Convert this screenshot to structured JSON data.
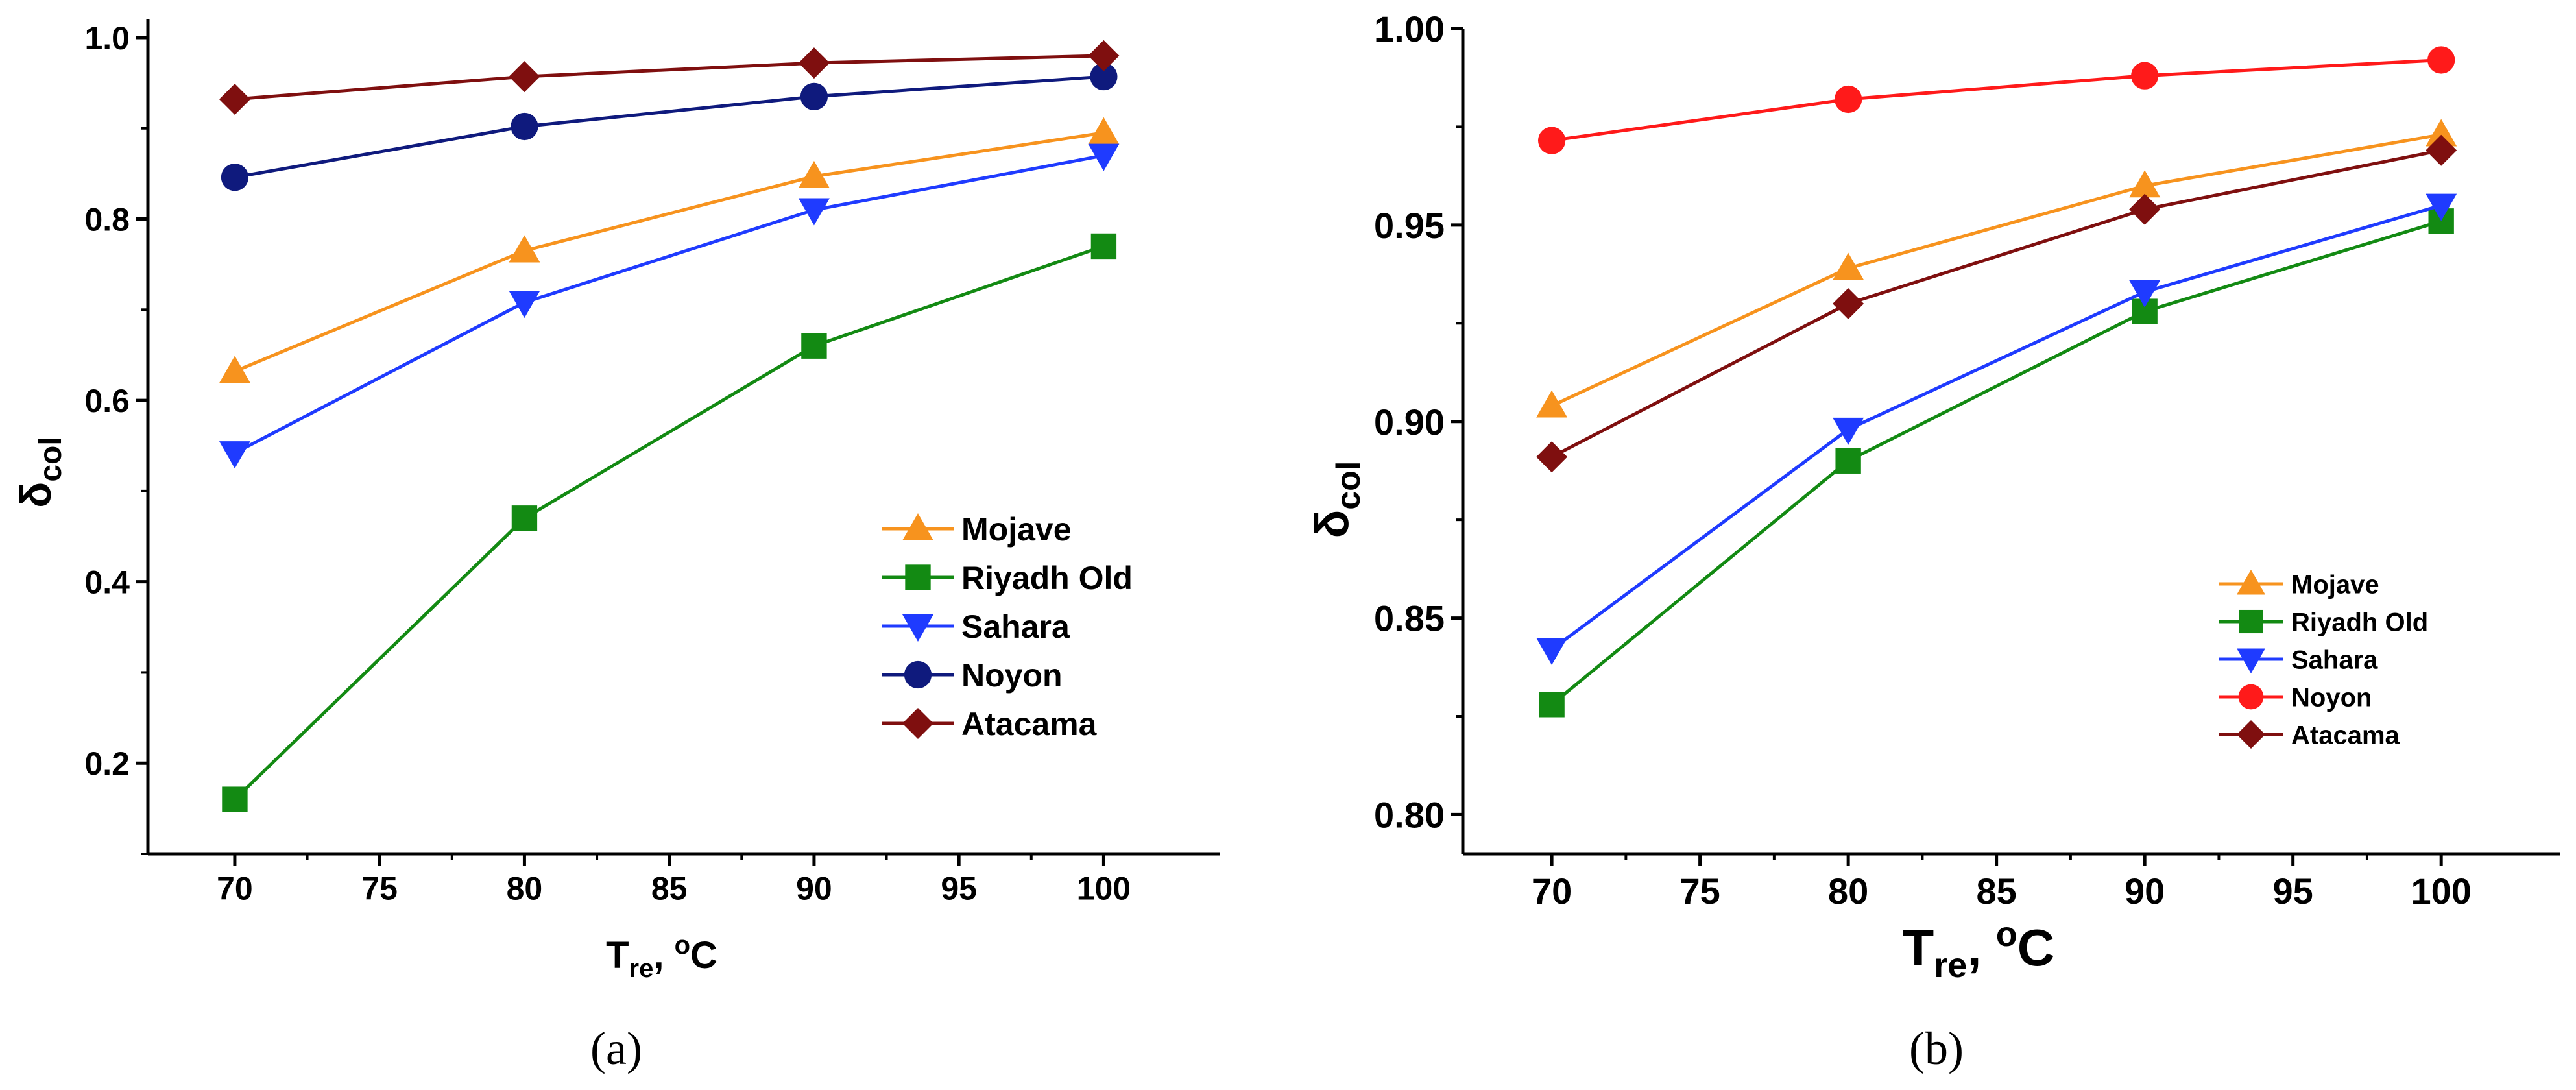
{
  "chart_data": [
    {
      "type": "line",
      "panel_label": "a",
      "x": [
        70,
        80,
        90,
        100
      ],
      "xlim": [
        67,
        104
      ],
      "ylim": [
        0.1,
        1.02
      ],
      "xticks": [
        "70",
        "75",
        "80",
        "85",
        "90",
        "95",
        "100"
      ],
      "yticks": [
        "0.2",
        "0.4",
        "0.6",
        "0.8",
        "1.0"
      ],
      "xlabel": {
        "main": "T",
        "sub": "re",
        "rest": ", ",
        "sup": "o",
        "unit": "C"
      },
      "ylabel": {
        "main": "δ",
        "sub": "col"
      },
      "legend_position": "lower-right",
      "series": [
        {
          "name": "Mojave",
          "color": "#f7931e",
          "marker": "triangle-up",
          "values": [
            0.632,
            0.765,
            0.847,
            0.895
          ]
        },
        {
          "name": "Riyadh Old",
          "color": "#138a13",
          "marker": "square",
          "values": [
            0.16,
            0.47,
            0.66,
            0.77
          ]
        },
        {
          "name": "Sahara",
          "color": "#1f3bff",
          "marker": "triangle-down",
          "values": [
            0.542,
            0.708,
            0.81,
            0.87
          ]
        },
        {
          "name": "Noyon",
          "color": "#0f1a7d",
          "marker": "circle",
          "values": [
            0.846,
            0.902,
            0.935,
            0.957
          ]
        },
        {
          "name": "Atacama",
          "color": "#7f0f0f",
          "marker": "diamond",
          "values": [
            0.932,
            0.957,
            0.972,
            0.98
          ]
        }
      ]
    },
    {
      "type": "line",
      "panel_label": "b",
      "x": [
        70,
        80,
        90,
        100
      ],
      "xlim": [
        67,
        104
      ],
      "ylim": [
        0.79,
        1.0
      ],
      "xticks": [
        "70",
        "75",
        "80",
        "85",
        "90",
        "95",
        "100"
      ],
      "yticks": [
        "0.80",
        "0.85",
        "0.90",
        "0.95",
        "1.00"
      ],
      "xlabel": {
        "main": "T",
        "sub": "re",
        "rest": ", ",
        "sup": "o",
        "unit": "C"
      },
      "ylabel": {
        "main": "δ",
        "sub": "col"
      },
      "legend_position": "lower-right",
      "series": [
        {
          "name": "Mojave",
          "color": "#f7931e",
          "marker": "triangle-up",
          "values": [
            0.904,
            0.939,
            0.96,
            0.973
          ]
        },
        {
          "name": "Riyadh Old",
          "color": "#138a13",
          "marker": "square",
          "values": [
            0.828,
            0.89,
            0.928,
            0.951
          ]
        },
        {
          "name": "Sahara",
          "color": "#1f3bff",
          "marker": "triangle-down",
          "values": [
            0.842,
            0.898,
            0.933,
            0.955
          ]
        },
        {
          "name": "Noyon",
          "color": "#ff1a1a",
          "marker": "circle",
          "values": [
            0.9715,
            0.982,
            0.988,
            0.992
          ]
        },
        {
          "name": "Atacama",
          "color": "#7f0f0f",
          "marker": "diamond",
          "values": [
            0.891,
            0.93,
            0.954,
            0.969
          ]
        }
      ]
    }
  ],
  "captions": [
    "(a)",
    "(b)"
  ]
}
